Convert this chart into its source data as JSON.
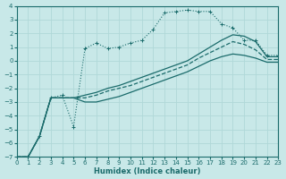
{
  "xlabel": "Humidex (Indice chaleur)",
  "background_color": "#c8e8e8",
  "grid_color": "#b0d8d8",
  "line_color": "#1a6b6b",
  "xlim": [
    0,
    23
  ],
  "ylim": [
    -7,
    4
  ],
  "x_ticks": [
    0,
    1,
    2,
    3,
    4,
    5,
    6,
    7,
    8,
    9,
    10,
    11,
    12,
    13,
    14,
    15,
    16,
    17,
    18,
    19,
    20,
    21,
    22,
    23
  ],
  "y_ticks": [
    -7,
    -6,
    -5,
    -4,
    -3,
    -2,
    -1,
    0,
    1,
    2,
    3,
    4
  ],
  "series": [
    {
      "x": [
        0,
        1,
        2,
        3,
        4,
        5,
        6,
        7,
        8,
        9,
        10,
        11,
        12,
        13,
        14,
        15,
        16,
        17,
        18,
        19,
        20,
        21,
        22,
        23
      ],
      "y": [
        -7,
        -7,
        -5.5,
        -2.7,
        -2.5,
        -4.8,
        0.9,
        1.3,
        0.9,
        1.0,
        1.3,
        1.5,
        2.3,
        3.5,
        3.6,
        3.7,
        3.6,
        3.6,
        2.7,
        2.4,
        1.5,
        1.5,
        0.4,
        0.4
      ],
      "style": "dotted",
      "marker": "+"
    },
    {
      "x": [
        0,
        1,
        2,
        3,
        4,
        5,
        6,
        7,
        8,
        9,
        10,
        11,
        12,
        13,
        14,
        15,
        16,
        17,
        18,
        19,
        20,
        21,
        22,
        23
      ],
      "y": [
        -7,
        -7,
        -5.5,
        -2.7,
        -2.7,
        -2.7,
        -2.5,
        -2.3,
        -2.0,
        -1.8,
        -1.5,
        -1.2,
        -0.9,
        -0.6,
        -0.3,
        0.0,
        0.5,
        1.0,
        1.5,
        1.9,
        1.8,
        1.4,
        0.3,
        0.3
      ],
      "style": "solid",
      "marker": null
    },
    {
      "x": [
        0,
        1,
        2,
        3,
        4,
        5,
        6,
        7,
        8,
        9,
        10,
        11,
        12,
        13,
        14,
        15,
        16,
        17,
        18,
        19,
        20,
        21,
        22,
        23
      ],
      "y": [
        -7,
        -7,
        -5.5,
        -2.7,
        -2.7,
        -2.7,
        -2.7,
        -2.5,
        -2.2,
        -2.0,
        -1.8,
        -1.5,
        -1.2,
        -0.9,
        -0.6,
        -0.3,
        0.2,
        0.6,
        1.0,
        1.4,
        1.2,
        0.8,
        0.1,
        0.1
      ],
      "style": "dashed",
      "marker": null
    },
    {
      "x": [
        0,
        1,
        2,
        3,
        4,
        5,
        6,
        7,
        8,
        9,
        10,
        11,
        12,
        13,
        14,
        15,
        16,
        17,
        18,
        19,
        20,
        21,
        22,
        23
      ],
      "y": [
        -7,
        -7,
        -5.5,
        -2.7,
        -2.7,
        -2.7,
        -3.0,
        -3.0,
        -2.8,
        -2.6,
        -2.3,
        -2.0,
        -1.7,
        -1.4,
        -1.1,
        -0.8,
        -0.4,
        0.0,
        0.3,
        0.5,
        0.4,
        0.2,
        -0.1,
        -0.1
      ],
      "style": "solid",
      "marker": null
    }
  ]
}
